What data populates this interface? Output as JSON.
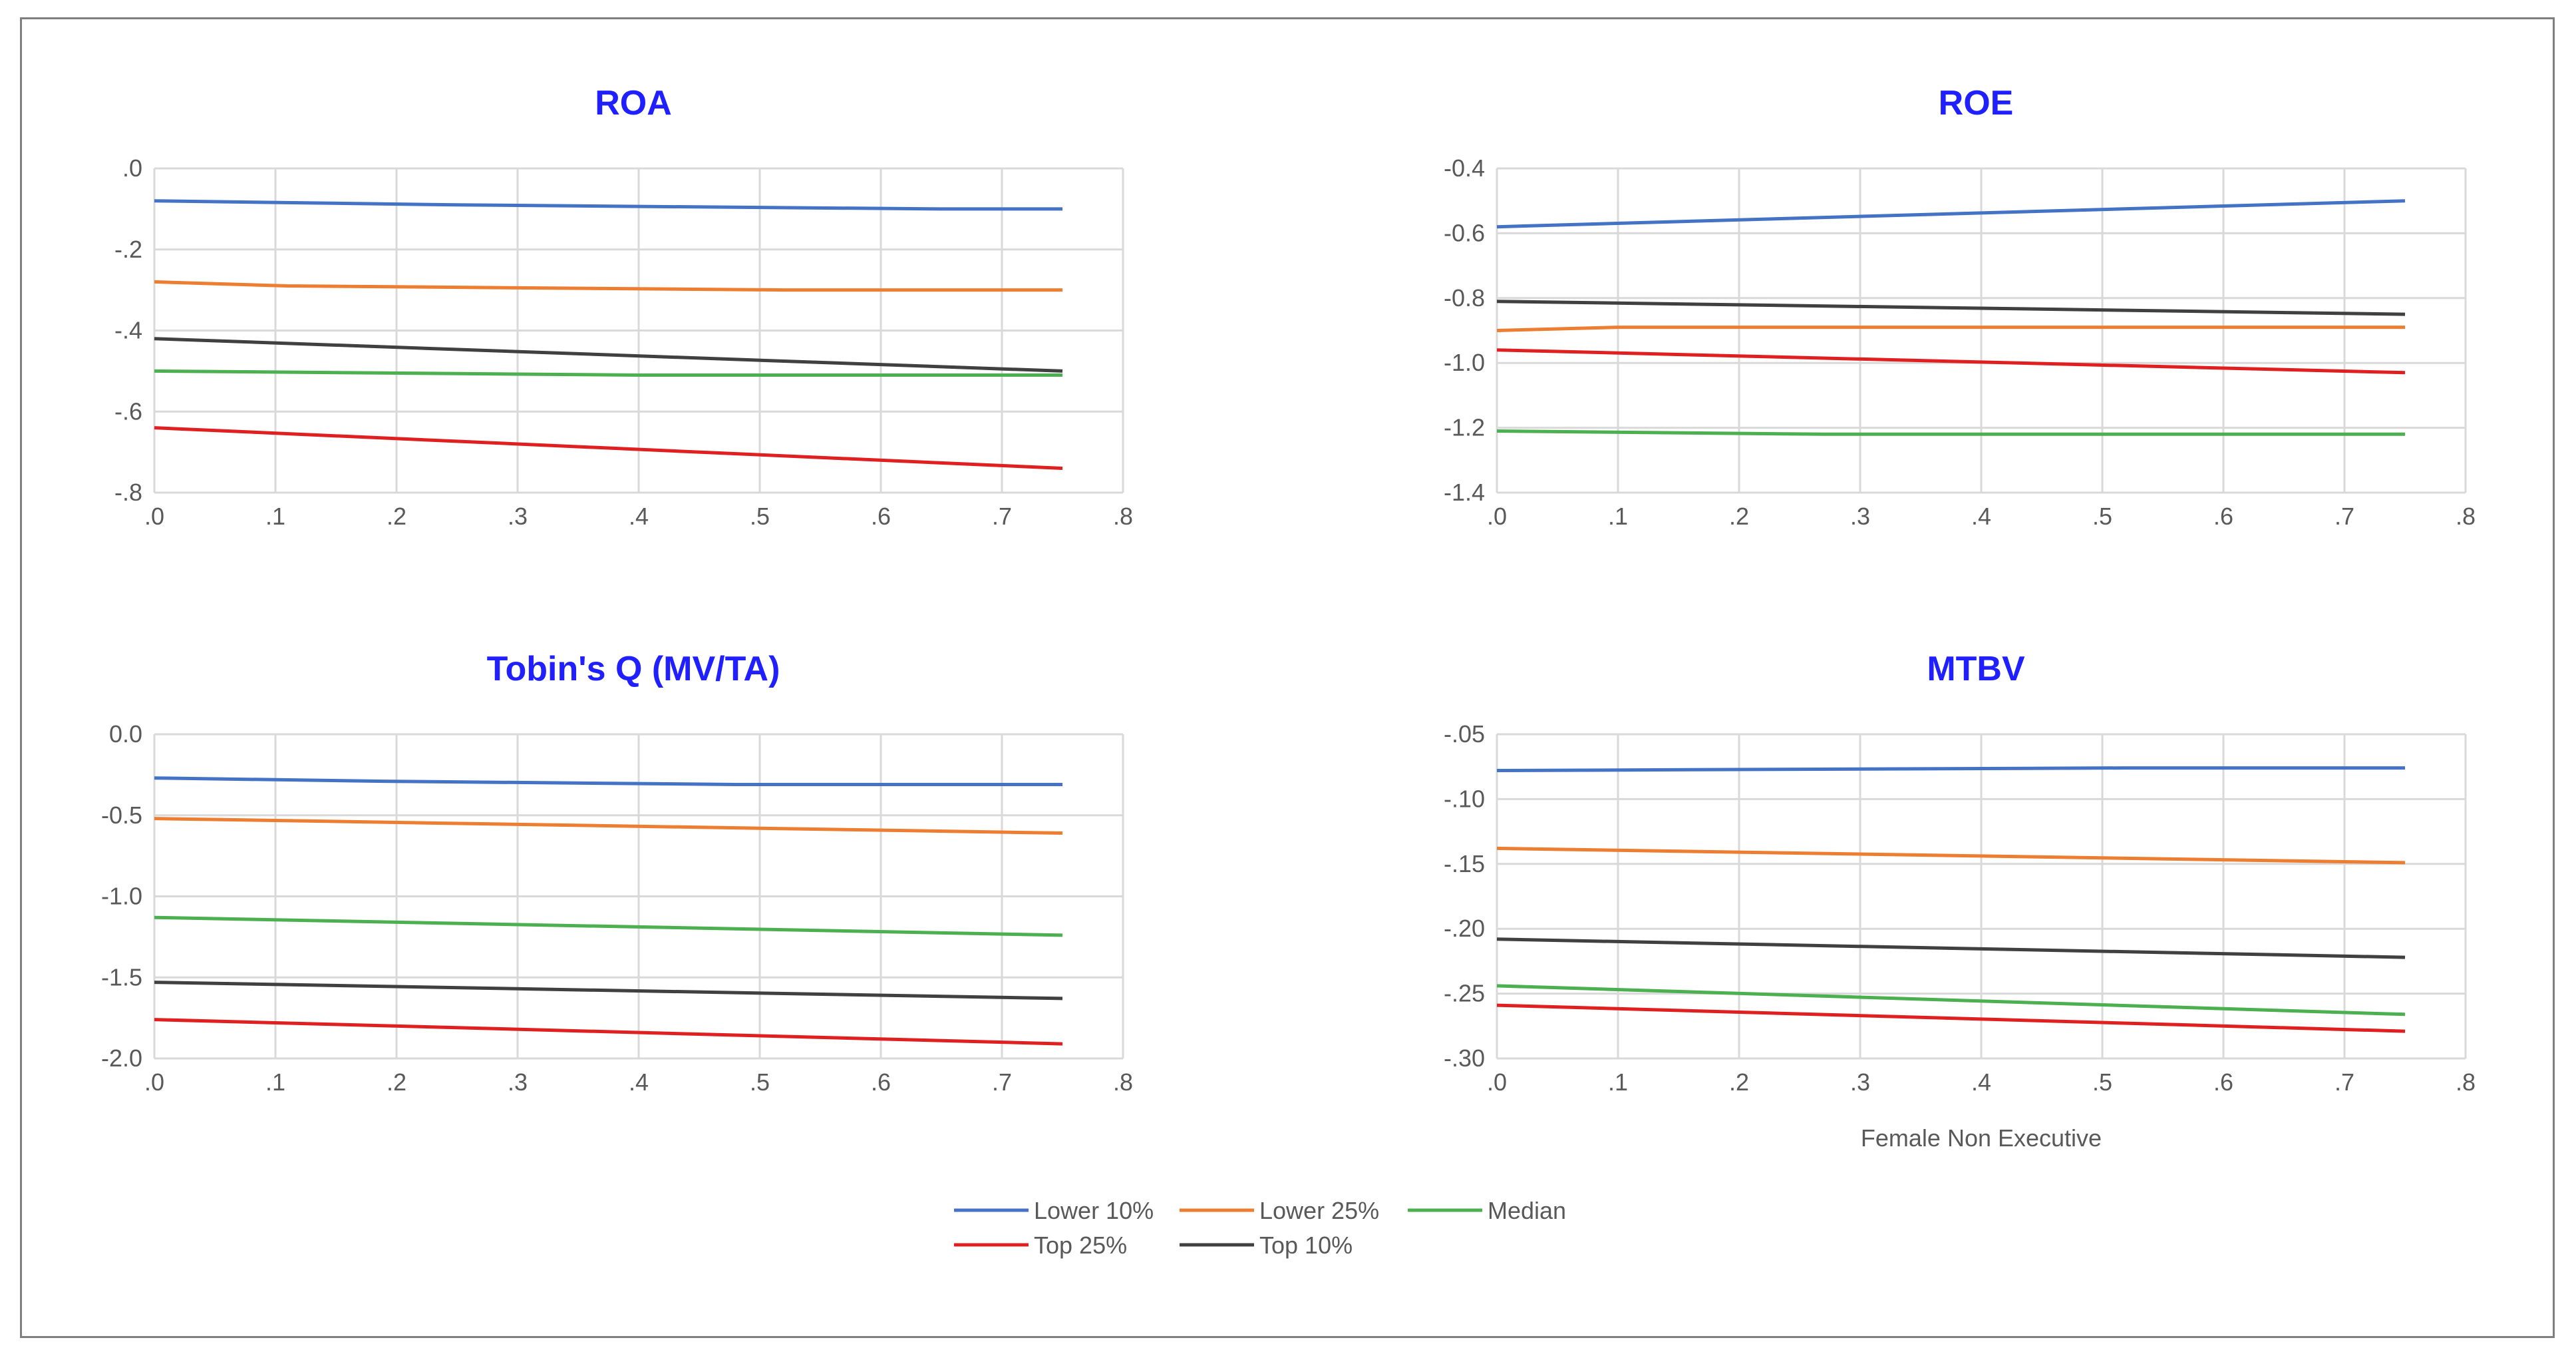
{
  "chart_data": [
    {
      "type": "line",
      "title": "ROA",
      "xlabel": "",
      "ylabel": "",
      "x_ticks": [
        ".0",
        ".1",
        ".2",
        ".3",
        ".4",
        ".5",
        ".6",
        ".7",
        ".8"
      ],
      "y_ticks": [
        ".0",
        "-.2",
        "-.4",
        "-.6",
        "-.8"
      ],
      "xlim": [
        0,
        0.8
      ],
      "ylim": [
        -0.8,
        0.0
      ],
      "grid": true,
      "series": [
        {
          "name": "Lower 10%",
          "x": [
            0,
            0.25,
            0.65,
            0.75
          ],
          "y": [
            -0.08,
            -0.09,
            -0.1,
            -0.1
          ]
        },
        {
          "name": "Lower 25%",
          "x": [
            0,
            0.11,
            0.52,
            0.75
          ],
          "y": [
            -0.28,
            -0.29,
            -0.3,
            -0.3
          ]
        },
        {
          "name": "Median",
          "x": [
            0,
            0.4,
            0.75
          ],
          "y": [
            -0.5,
            -0.51,
            -0.51
          ]
        },
        {
          "name": "Top 25%",
          "x": [
            0,
            0.75
          ],
          "y": [
            -0.64,
            -0.74
          ]
        },
        {
          "name": "Top 10%",
          "x": [
            0,
            0.75
          ],
          "y": [
            -0.42,
            -0.5
          ]
        }
      ]
    },
    {
      "type": "line",
      "title": "ROE",
      "xlabel": "",
      "ylabel": "",
      "x_ticks": [
        ".0",
        ".1",
        ".2",
        ".3",
        ".4",
        ".5",
        ".6",
        ".7",
        ".8"
      ],
      "y_ticks": [
        "-0.4",
        "-0.6",
        "-0.8",
        "-1.0",
        "-1.2",
        "-1.4"
      ],
      "xlim": [
        0,
        0.8
      ],
      "ylim": [
        -1.4,
        -0.4
      ],
      "grid": true,
      "series": [
        {
          "name": "Lower 10%",
          "x": [
            0,
            0.75
          ],
          "y": [
            -0.58,
            -0.5
          ]
        },
        {
          "name": "Lower 25%",
          "x": [
            0,
            0.1,
            0.75
          ],
          "y": [
            -0.9,
            -0.89,
            -0.89
          ]
        },
        {
          "name": "Median",
          "x": [
            0,
            0.27,
            0.75
          ],
          "y": [
            -1.21,
            -1.22,
            -1.22
          ]
        },
        {
          "name": "Top 25%",
          "x": [
            0,
            0.75
          ],
          "y": [
            -0.96,
            -1.03
          ]
        },
        {
          "name": "Top 10%",
          "x": [
            0,
            0.75
          ],
          "y": [
            -0.81,
            -0.85
          ]
        }
      ]
    },
    {
      "type": "line",
      "title": "Tobin's Q (MV/TA)",
      "xlabel": "",
      "ylabel": "",
      "x_ticks": [
        ".0",
        ".1",
        ".2",
        ".3",
        ".4",
        ".5",
        ".6",
        ".7",
        ".8"
      ],
      "y_ticks": [
        "0.0",
        "-0.5",
        "-1.0",
        "-1.5",
        "-2.0"
      ],
      "xlim": [
        0,
        0.8
      ],
      "ylim": [
        -2.0,
        0.0
      ],
      "grid": true,
      "series": [
        {
          "name": "Lower 10%",
          "x": [
            0,
            0.19,
            0.48,
            0.75
          ],
          "y": [
            -0.27,
            -0.29,
            -0.31,
            -0.31
          ]
        },
        {
          "name": "Lower 25%",
          "x": [
            0,
            0.75
          ],
          "y": [
            -0.52,
            -0.61
          ]
        },
        {
          "name": "Median",
          "x": [
            0,
            0.75
          ],
          "y": [
            -1.13,
            -1.24
          ]
        },
        {
          "name": "Top 25%",
          "x": [
            0,
            0.75
          ],
          "y": [
            -1.76,
            -1.91
          ]
        },
        {
          "name": "Top 10%",
          "x": [
            0,
            0.75
          ],
          "y": [
            -1.53,
            -1.63
          ]
        }
      ]
    },
    {
      "type": "line",
      "title": "MTBV",
      "xlabel": "Female Non Executive",
      "ylabel": "",
      "x_ticks": [
        ".0",
        ".1",
        ".2",
        ".3",
        ".4",
        ".5",
        ".6",
        ".7",
        ".8"
      ],
      "y_ticks": [
        "-.05",
        "-.10",
        "-.15",
        "-.20",
        "-.25",
        "-.30"
      ],
      "xlim": [
        0,
        0.8
      ],
      "ylim": [
        -0.3,
        -0.05
      ],
      "grid": true,
      "series": [
        {
          "name": "Lower 10%",
          "x": [
            0,
            0.52,
            0.75
          ],
          "y": [
            -0.078,
            -0.076,
            -0.076
          ]
        },
        {
          "name": "Lower 25%",
          "x": [
            0,
            0.75
          ],
          "y": [
            -0.138,
            -0.149
          ]
        },
        {
          "name": "Median",
          "x": [
            0,
            0.75
          ],
          "y": [
            -0.244,
            -0.266
          ]
        },
        {
          "name": "Top 25%",
          "x": [
            0,
            0.75
          ],
          "y": [
            -0.259,
            -0.279
          ]
        },
        {
          "name": "Top 10%",
          "x": [
            0,
            0.75
          ],
          "y": [
            -0.208,
            -0.222
          ]
        }
      ]
    }
  ],
  "legend": {
    "placement": "bottom-center",
    "items": [
      {
        "name": "Lower 10%",
        "color": "#4472c4"
      },
      {
        "name": "Lower 25%",
        "color": "#ed7d31"
      },
      {
        "name": "Median",
        "color": "#4caf50"
      },
      {
        "name": "Top 25%",
        "color": "#e02020"
      },
      {
        "name": "Top 10%",
        "color": "#404040"
      }
    ]
  }
}
